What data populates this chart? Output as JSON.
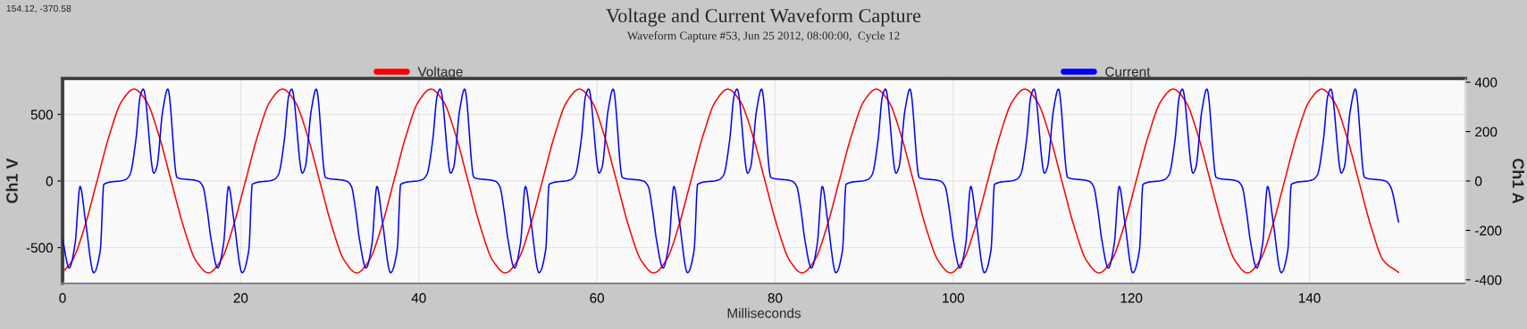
{
  "chart_data": {
    "type": "line",
    "title": "Voltage and Current Waveform Capture",
    "subtitle": "Waveform Capture #53, Jun 25 2012, 08:00:00,  Cycle 12",
    "xlabel": "Milliseconds",
    "ylabel": "Ch1 V",
    "y2label": "Ch1 A",
    "annotations": [
      "154.12, -370.58"
    ],
    "series": [
      {
        "name": "Voltage",
        "color": "#ff0000",
        "x": [
          0,
          1.09,
          2.48,
          3.87,
          5.26,
          6.64,
          8.03,
          9.42,
          10.81,
          12.2,
          13.59,
          14.98,
          16.37,
          17.76,
          19.15,
          20.54,
          21.93,
          23.31,
          24.7,
          26.09,
          27.48,
          28.87,
          30.26,
          31.65,
          33.03,
          34.42,
          35.81,
          37.2,
          38.59,
          39.97,
          41.36,
          42.75,
          44.14,
          45.53,
          46.92,
          48.31,
          49.7,
          51.09,
          52.48,
          53.87,
          55.26,
          56.64,
          58.03,
          59.42,
          60.81,
          62.2,
          63.59,
          64.98,
          66.37,
          67.76,
          69.15,
          70.54,
          71.93,
          73.31,
          74.7,
          76.09,
          77.48,
          78.87,
          80.26,
          81.65,
          83.03,
          84.42,
          85.81,
          87.2,
          88.59,
          89.97,
          91.36,
          92.75,
          94.14,
          95.53,
          96.92,
          98.31,
          99.7,
          101.09,
          102.48,
          103.87,
          105.26,
          106.64,
          108.03,
          109.42,
          110.81,
          112.2,
          113.59,
          114.98,
          116.37,
          117.76,
          119.15,
          120.54,
          121.93,
          123.31,
          124.7,
          126.09,
          127.48,
          128.87,
          130.26,
          131.65,
          133.03,
          134.42,
          135.81,
          137.2,
          138.59,
          139.97,
          141.36,
          142.75,
          144.14,
          145.53,
          146.92,
          148.31,
          150
        ],
        "values": [
          -686,
          -598,
          -345,
          0,
          345,
          598,
          690,
          598,
          345,
          0,
          -345,
          -598,
          -690,
          -598,
          -345,
          0,
          345,
          598,
          690,
          598,
          345,
          0,
          -345,
          -598,
          -690,
          -598,
          -345,
          0,
          345,
          598,
          690,
          598,
          345,
          0,
          -345,
          -598,
          -690,
          -598,
          -345,
          0,
          345,
          598,
          690,
          598,
          345,
          0,
          -345,
          -598,
          -690,
          -598,
          -345,
          0,
          345,
          598,
          690,
          598,
          345,
          0,
          -345,
          -598,
          -690,
          -598,
          -345,
          0,
          345,
          598,
          690,
          598,
          345,
          0,
          -345,
          -598,
          -690,
          -598,
          -345,
          0,
          345,
          598,
          690,
          598,
          345,
          0,
          -345,
          -598,
          -690,
          -598,
          -345,
          0,
          345,
          598,
          690,
          598,
          345,
          0,
          -345,
          -598,
          -690,
          -598,
          -345,
          0,
          345,
          598,
          690,
          598,
          345,
          0,
          -345,
          -598,
          -686
        ]
      },
      {
        "name": "Current",
        "color": "#0000ff",
        "axis": "y2",
        "x": [
          0,
          0.75,
          1.4,
          1.97,
          2.57,
          3.5,
          4.24,
          4.64,
          7.07,
          7.57,
          8.23,
          8.73,
          9.07,
          10.25,
          10.58,
          11.25,
          11.82,
          12.86,
          15.26,
          15.76,
          16.26,
          16.67,
          17.42,
          18.07,
          18.64,
          19.24,
          20.17,
          20.91,
          21.31,
          23.74,
          24.24,
          24.9,
          25.4,
          25.74,
          26.92,
          27.25,
          27.92,
          28.49,
          29.53,
          31.93,
          32.43,
          32.93,
          33.33,
          34.08,
          34.73,
          35.3,
          35.9,
          36.83,
          37.57,
          37.97,
          40.4,
          40.9,
          41.56,
          42.06,
          42.4,
          43.58,
          43.91,
          44.58,
          45.15,
          46.19,
          48.59,
          49.09,
          49.59,
          50,
          50.75,
          51.4,
          51.97,
          52.57,
          53.5,
          54.24,
          54.64,
          57.07,
          57.57,
          58.23,
          58.73,
          59.07,
          60.25,
          60.58,
          61.25,
          61.82,
          62.86,
          65.26,
          65.76,
          66.26,
          66.67,
          67.42,
          68.07,
          68.64,
          69.24,
          70.17,
          70.91,
          71.31,
          73.74,
          74.24,
          74.9,
          75.4,
          75.74,
          76.92,
          77.25,
          77.92,
          78.49,
          79.53,
          81.93,
          82.43,
          82.93,
          83.33,
          84.08,
          84.73,
          85.3,
          85.9,
          86.83,
          87.57,
          87.97,
          90.4,
          90.9,
          91.56,
          92.06,
          92.4,
          93.58,
          93.91,
          94.58,
          95.15,
          96.19,
          98.59,
          99.09,
          99.59,
          100,
          100.75,
          101.4,
          101.97,
          102.57,
          103.5,
          104.24,
          104.64,
          107.07,
          107.57,
          108.23,
          108.73,
          109.07,
          110.25,
          110.58,
          111.25,
          111.82,
          112.86,
          115.26,
          115.76,
          116.26,
          116.67,
          117.42,
          118.07,
          118.64,
          119.24,
          120.17,
          120.91,
          121.31,
          123.74,
          124.24,
          124.9,
          125.4,
          125.74,
          126.92,
          127.25,
          127.92,
          128.49,
          129.53,
          131.93,
          132.43,
          132.93,
          133.33,
          134.08,
          134.73,
          135.3,
          135.9,
          136.83,
          137.57,
          137.97,
          140.4,
          140.9,
          141.56,
          142.06,
          142.4,
          143.58,
          143.91,
          144.58,
          145.15,
          146.19,
          148.59,
          149.09,
          150
        ],
        "values": [
          -235,
          -352,
          -256,
          -22,
          -160,
          -371,
          -280,
          -13,
          6,
          26,
          165,
          345,
          372,
          32,
          56,
          285,
          372,
          14,
          -1,
          -22,
          -124,
          -235,
          -352,
          -256,
          -22,
          -160,
          -371,
          -280,
          -13,
          6,
          26,
          165,
          345,
          372,
          32,
          56,
          285,
          372,
          14,
          -1,
          -22,
          -124,
          -235,
          -352,
          -256,
          -22,
          -160,
          -371,
          -280,
          -13,
          6,
          26,
          165,
          345,
          372,
          32,
          56,
          285,
          372,
          14,
          -1,
          -22,
          -124,
          -235,
          -352,
          -256,
          -22,
          -160,
          -371,
          -280,
          -13,
          6,
          26,
          165,
          345,
          372,
          32,
          56,
          285,
          372,
          14,
          -1,
          -22,
          -124,
          -235,
          -352,
          -256,
          -22,
          -160,
          -371,
          -280,
          -13,
          6,
          26,
          165,
          345,
          372,
          32,
          56,
          285,
          372,
          14,
          -1,
          -22,
          -124,
          -235,
          -352,
          -256,
          -22,
          -160,
          -371,
          -280,
          -13,
          6,
          26,
          165,
          345,
          372,
          32,
          56,
          285,
          372,
          14,
          -1,
          -22,
          -124,
          -235,
          -352,
          -256,
          -22,
          -160,
          -371,
          -280,
          -13,
          6,
          26,
          165,
          345,
          372,
          32,
          56,
          285,
          372,
          14,
          -1,
          -22,
          -124,
          -235,
          -352,
          -256,
          -22,
          -160,
          -371,
          -280,
          -13,
          6,
          26,
          165,
          345,
          372,
          32,
          56,
          285,
          372,
          14,
          -1,
          -22,
          -124,
          -235,
          -352,
          -256,
          -22,
          -160,
          -371,
          -280,
          -13,
          6,
          26,
          165,
          345,
          372,
          32,
          56,
          285,
          372,
          14,
          -1,
          -22,
          -166
        ]
      }
    ],
    "xlim": [
      0,
      157.5
    ],
    "xticks": [
      0,
      20,
      40,
      60,
      80,
      100,
      120,
      140
    ],
    "ylim": [
      -770,
      770
    ],
    "yticks": [
      -500,
      0,
      500
    ],
    "y2lim": [
      -415,
      415
    ],
    "y2ticks": [
      -400,
      -200,
      0,
      200,
      400
    ],
    "grid": true,
    "legend": "top",
    "marker": "none",
    "line_style": "solid"
  }
}
